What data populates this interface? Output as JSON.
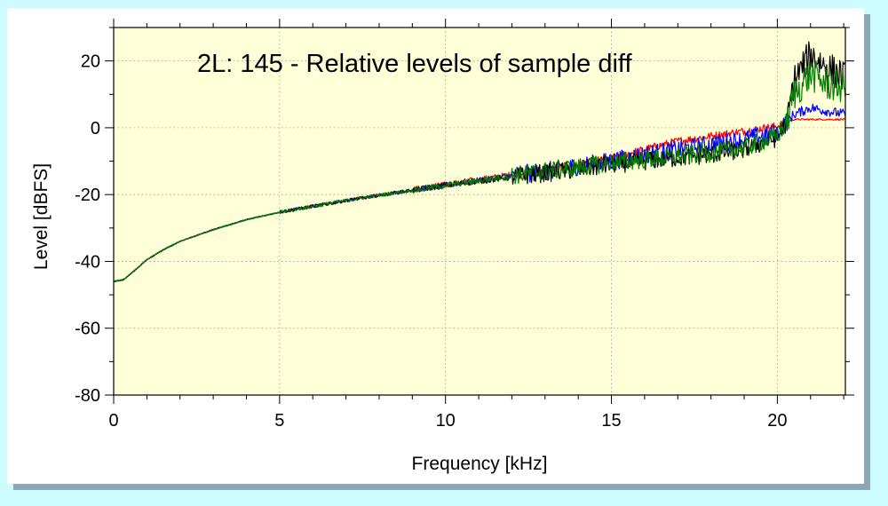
{
  "chart_data": {
    "type": "line",
    "title": "2L: 145 - Relative levels of sample diff",
    "xlabel": "Frequency [kHz]",
    "ylabel": "Level [dBFS]",
    "xlim": [
      0,
      22.05
    ],
    "ylim": [
      -80,
      30
    ],
    "xticks": [
      0,
      5,
      10,
      15,
      20
    ],
    "yticks": [
      20,
      0,
      -20,
      -40,
      -60,
      -80
    ],
    "xtick_labels": [
      "0",
      "5",
      "10",
      "15",
      "20"
    ],
    "ytick_labels": [
      "20",
      "0",
      "-20",
      "-40",
      "-60",
      "-80"
    ],
    "grid": true,
    "legend": "none",
    "background_color": "#ffffd8",
    "series": [
      {
        "color": "#ff0000",
        "x": [
          0,
          0.3,
          0.6,
          1,
          1.5,
          2,
          3,
          4,
          5,
          6,
          7,
          8,
          9,
          10,
          11,
          12,
          13,
          14,
          15,
          16,
          17,
          18,
          19,
          20,
          20.3,
          20.5,
          21,
          21.5,
          22.05
        ],
        "y": [
          -46,
          -45.5,
          -43,
          -39.5,
          -36.5,
          -34,
          -30.5,
          -27.5,
          -25.3,
          -23.5,
          -21.8,
          -20.2,
          -18.5,
          -17,
          -15.5,
          -14,
          -12.5,
          -11,
          -9,
          -6.5,
          -4,
          -2.5,
          -1,
          0.5,
          2,
          2.5,
          2.5,
          2.5,
          2.5
        ]
      },
      {
        "color": "#0000ff",
        "x": [
          0,
          0.3,
          0.6,
          1,
          1.5,
          2,
          3,
          4,
          5,
          6,
          7,
          8,
          9,
          10,
          11,
          12,
          13,
          14,
          15,
          16,
          17,
          18,
          19,
          20,
          20.3,
          20.5,
          21,
          21.5,
          22.05
        ],
        "y": [
          -46,
          -45.5,
          -43,
          -39.5,
          -36.5,
          -34,
          -30.5,
          -27.5,
          -25.3,
          -23.5,
          -21.8,
          -20.2,
          -18.7,
          -17.2,
          -15.8,
          -14.3,
          -13,
          -11.5,
          -10,
          -8,
          -6.5,
          -5,
          -3.5,
          -1.5,
          2,
          4,
          6,
          5,
          4
        ]
      },
      {
        "color": "#000000",
        "x": [
          0,
          0.3,
          0.6,
          1,
          1.5,
          2,
          3,
          4,
          5,
          6,
          7,
          8,
          9,
          10,
          11,
          12,
          13,
          14,
          15,
          16,
          17,
          18,
          19,
          20,
          20.3,
          20.5,
          21,
          21.5,
          22.05
        ],
        "y": [
          -46,
          -45.5,
          -43,
          -39.5,
          -36.5,
          -34,
          -30.5,
          -27.5,
          -25.3,
          -23.5,
          -21.8,
          -20.2,
          -18.7,
          -17.3,
          -16,
          -14.8,
          -13.5,
          -12.5,
          -11,
          -10,
          -9,
          -8,
          -6.5,
          -3,
          2,
          14,
          22,
          18,
          15
        ]
      },
      {
        "color": "#008000",
        "x": [
          0,
          0.3,
          0.6,
          1,
          1.5,
          2,
          3,
          4,
          5,
          6,
          7,
          8,
          9,
          10,
          11,
          12,
          13,
          14,
          15,
          16,
          17,
          18,
          19,
          20,
          20.3,
          20.5,
          21,
          21.5,
          22.05
        ],
        "y": [
          -46,
          -45.5,
          -43,
          -39.5,
          -36.5,
          -34,
          -30.5,
          -27.5,
          -25.3,
          -23.5,
          -21.8,
          -20.2,
          -18.7,
          -17.3,
          -15.8,
          -14.3,
          -13,
          -11.8,
          -10.5,
          -9.5,
          -8.5,
          -7.5,
          -6,
          -2.5,
          2,
          10,
          16,
          13,
          12
        ]
      }
    ]
  }
}
